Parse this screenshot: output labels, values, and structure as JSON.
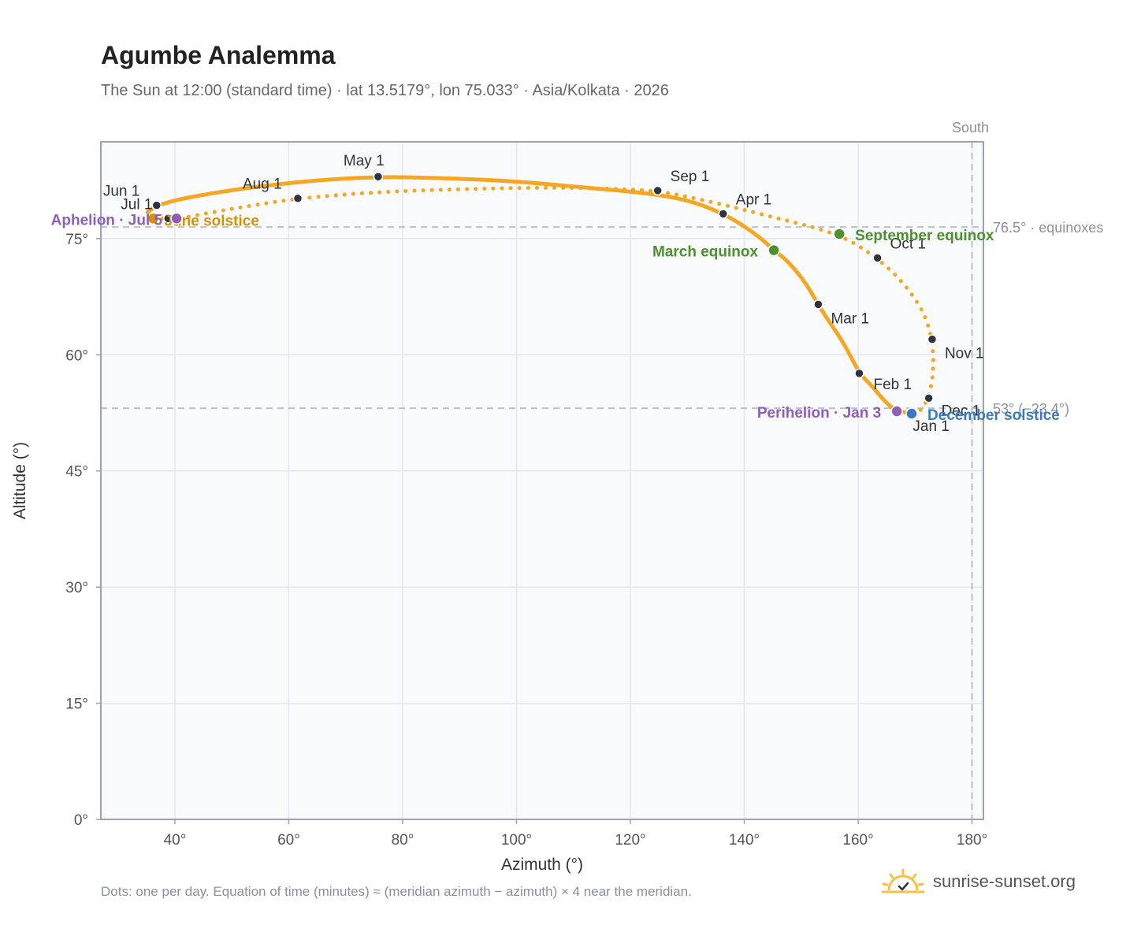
{
  "title": "Agumbe Analemma",
  "subtitle": "The Sun at 12:00 (standard time) · lat 13.5179°, lon 75.033° · Asia/Kolkata · 2026",
  "footnote": "Dots: one per day. Equation of time (minutes) ≈ (meridian azimuth − azimuth) × 4 near the meridian.",
  "brand": {
    "text": "sunrise-sunset.org",
    "icon": "sun-check-icon"
  },
  "colors": {
    "curve": "#f5a623",
    "month_dot": "#2d3340",
    "equinox": "#4e8f2f",
    "december_solstice": "#3b7abf",
    "june_solstice": "#d4920a",
    "apsis": "#8e5fb5",
    "grid": "#e4e8ee",
    "plot_bg": "#f8fafc",
    "reference_line": "#b8c0cc"
  },
  "chart_data": {
    "type": "scatter",
    "xlabel": "Azimuth (°)",
    "ylabel": "Altitude (°)",
    "xlim": [
      27,
      182
    ],
    "ylim": [
      0,
      87.5
    ],
    "xticks": [
      40,
      60,
      80,
      100,
      120,
      140,
      160,
      180
    ],
    "xtick_labels": [
      "40°",
      "60°",
      "80°",
      "100°",
      "120°",
      "140°",
      "160°",
      "180°"
    ],
    "yticks": [
      0,
      15,
      30,
      45,
      60,
      75
    ],
    "ytick_labels": [
      "0°",
      "15°",
      "30°",
      "45°",
      "60°",
      "75°"
    ],
    "grid": true,
    "south_line": {
      "x": 180,
      "label": "South"
    },
    "reference_lines": [
      {
        "y": 76.5,
        "label": "76.5° · equinoxes"
      },
      {
        "y": 53.1,
        "label": "53° (−23.4°)"
      }
    ],
    "month_markers": [
      {
        "label": "Jan 1",
        "az": 169.6,
        "alt": 52.4
      },
      {
        "label": "Feb 1",
        "az": 160.2,
        "alt": 57.6
      },
      {
        "label": "Mar 1",
        "az": 153.0,
        "alt": 66.5
      },
      {
        "label": "Apr 1",
        "az": 136.3,
        "alt": 78.2
      },
      {
        "label": "May 1",
        "az": 75.7,
        "alt": 83.0
      },
      {
        "label": "Jun 1",
        "az": 36.8,
        "alt": 79.3
      },
      {
        "label": "Jul 1",
        "az": 38.8,
        "alt": 77.6
      },
      {
        "label": "Aug 1",
        "az": 61.6,
        "alt": 80.2
      },
      {
        "label": "Sep 1",
        "az": 124.8,
        "alt": 81.2
      },
      {
        "label": "Oct 1",
        "az": 163.4,
        "alt": 72.5
      },
      {
        "label": "Nov 1",
        "az": 173.0,
        "alt": 62.0
      },
      {
        "label": "Dec 1",
        "az": 172.4,
        "alt": 54.4
      }
    ],
    "events": [
      {
        "label": "March equinox",
        "az": 145.2,
        "alt": 73.5,
        "kind": "equinox"
      },
      {
        "label": "September equinox",
        "az": 156.7,
        "alt": 75.6,
        "kind": "equinox"
      },
      {
        "label": "June solstice",
        "az": 36.2,
        "alt": 77.6,
        "kind": "june_solstice"
      },
      {
        "label": "December solstice",
        "az": 169.4,
        "alt": 52.4,
        "kind": "december_solstice"
      },
      {
        "label": "Perihelion · Jan 3",
        "az": 166.8,
        "alt": 52.7,
        "kind": "apsis"
      },
      {
        "label": "Aphelion · Jul 5",
        "az": 40.3,
        "alt": 77.6,
        "kind": "apsis"
      }
    ],
    "curve_path": [
      [
        169.6,
        52.4
      ],
      [
        166.4,
        52.8
      ],
      [
        164.3,
        54.3
      ],
      [
        162.5,
        55.9
      ],
      [
        160.2,
        57.6
      ],
      [
        157.5,
        61.5
      ],
      [
        154.6,
        64.6
      ],
      [
        153.0,
        66.5
      ],
      [
        150.5,
        69.6
      ],
      [
        147.5,
        72.2
      ],
      [
        145.2,
        73.5
      ],
      [
        143.0,
        75.0
      ],
      [
        139.6,
        76.8
      ],
      [
        136.3,
        78.2
      ],
      [
        131.0,
        79.8
      ],
      [
        124.0,
        80.8
      ],
      [
        112.0,
        81.6
      ],
      [
        100.0,
        82.4
      ],
      [
        88.0,
        82.8
      ],
      [
        75.7,
        83.0
      ],
      [
        64.0,
        82.5
      ],
      [
        52.0,
        81.5
      ],
      [
        42.0,
        80.3
      ],
      [
        36.8,
        79.3
      ],
      [
        35.2,
        78.4
      ],
      [
        36.0,
        77.6
      ],
      [
        38.8,
        77.6
      ],
      [
        41.0,
        77.6
      ],
      [
        45.0,
        78.2
      ],
      [
        52.0,
        79.1
      ],
      [
        61.6,
        80.2
      ],
      [
        75.0,
        81.0
      ],
      [
        90.0,
        81.4
      ],
      [
        105.0,
        81.6
      ],
      [
        115.0,
        81.5
      ],
      [
        124.8,
        81.2
      ],
      [
        134.0,
        79.8
      ],
      [
        145.0,
        77.8
      ],
      [
        156.7,
        75.6
      ],
      [
        163.4,
        72.5
      ],
      [
        168.0,
        69.3
      ],
      [
        171.6,
        65.5
      ],
      [
        173.0,
        62.0
      ],
      [
        173.3,
        58.0
      ],
      [
        172.4,
        54.4
      ],
      [
        170.8,
        52.6
      ],
      [
        169.6,
        52.4
      ]
    ]
  }
}
